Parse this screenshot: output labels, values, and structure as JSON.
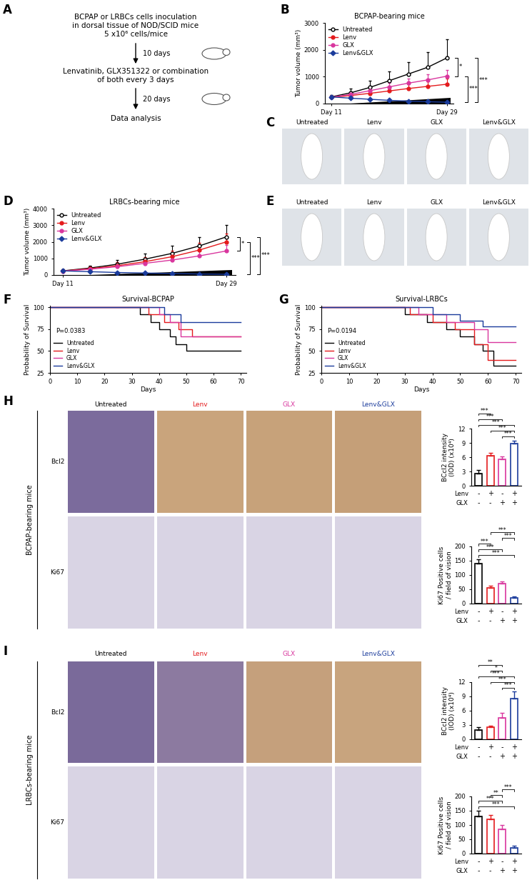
{
  "diagram": {
    "panel": "A",
    "nodes": [
      {
        "text": "BCPAP or LRBCs cells inoculation\nin dorsal tissue of NOD/SCID mice\n5 x10⁶ cells/mice"
      },
      {
        "text": "Lenvatinib, GLX351322 or combination\nof both every 3 days"
      },
      {
        "text": "Data analysis"
      }
    ],
    "edges": [
      {
        "from": 0,
        "to": 1,
        "label": "10 days"
      },
      {
        "from": 1,
        "to": 2,
        "label": "20 days"
      }
    ]
  },
  "chart_data": [
    {
      "panel": "B",
      "type": "line",
      "title": "BCPAP-bearing mice",
      "y_label": "Tumor volume (mm³)",
      "x": [
        11,
        14,
        17,
        20,
        23,
        26,
        29
      ],
      "xlim": [
        10,
        30
      ],
      "xticks": [
        {
          "value": 11,
          "label": "Day 11"
        },
        {
          "value": 29,
          "label": "Day 29"
        }
      ],
      "ylim": [
        0,
        3000
      ],
      "yticks": [
        0,
        1000,
        2000,
        3000
      ],
      "legend": "upper left",
      "series": [
        {
          "name": "Untreated",
          "color": "#000000",
          "marker": "open circle",
          "values": [
            250,
            400,
            600,
            850,
            1100,
            1350,
            1700
          ],
          "errors": [
            80,
            150,
            250,
            350,
            450,
            550,
            700
          ]
        },
        {
          "name": "Lenv",
          "color": "#e41a1c",
          "marker": "circle",
          "values": [
            230,
            300,
            380,
            470,
            560,
            640,
            720
          ],
          "errors": [
            50,
            80,
            100,
            130,
            150,
            180,
            200
          ]
        },
        {
          "name": "GLX",
          "color": "#d9369e",
          "marker": "circle",
          "values": [
            240,
            340,
            480,
            620,
            760,
            880,
            1020
          ],
          "errors": [
            60,
            90,
            120,
            150,
            180,
            200,
            230
          ]
        },
        {
          "name": "Lenv&GLX",
          "color": "#1b3c9c",
          "marker": "diamond",
          "values": [
            250,
            200,
            160,
            120,
            90,
            70,
            50
          ],
          "errors": [
            40,
            30,
            25,
            20,
            15,
            12,
            10
          ]
        }
      ],
      "significance": [
        {
          "from": "Untreated",
          "to": "GLX",
          "label": "*"
        },
        {
          "from": "GLX",
          "to": "Lenv&GLX",
          "label": "***"
        },
        {
          "from": "Untreated",
          "to": "Lenv&GLX",
          "label": "***"
        }
      ]
    },
    {
      "panel": "D",
      "type": "line",
      "title": "LRBCs-bearing mice",
      "y_label": "Tumor volume (mm³)",
      "x": [
        11,
        14,
        17,
        20,
        23,
        26,
        29
      ],
      "xlim": [
        10,
        30
      ],
      "xticks": [
        {
          "value": 11,
          "label": "Day 11"
        },
        {
          "value": 29,
          "label": "Day 29"
        }
      ],
      "ylim": [
        0,
        4000
      ],
      "yticks": [
        0,
        1000,
        2000,
        3000,
        4000
      ],
      "legend": "upper left",
      "series": [
        {
          "name": "Untreated",
          "color": "#000000",
          "marker": "open circle",
          "values": [
            250,
            420,
            650,
            950,
            1300,
            1750,
            2300
          ],
          "errors": [
            80,
            150,
            250,
            350,
            450,
            550,
            700
          ]
        },
        {
          "name": "Lenv",
          "color": "#e41a1c",
          "marker": "circle",
          "values": [
            240,
            380,
            560,
            800,
            1100,
            1500,
            2000
          ],
          "errors": [
            60,
            120,
            200,
            280,
            350,
            420,
            500
          ]
        },
        {
          "name": "GLX",
          "color": "#d9369e",
          "marker": "circle",
          "values": [
            230,
            350,
            500,
            700,
            900,
            1150,
            1450
          ],
          "errors": [
            60,
            100,
            150,
            200,
            250,
            300,
            350
          ]
        },
        {
          "name": "Lenv&GLX",
          "color": "#1b3c9c",
          "marker": "diamond",
          "values": [
            250,
            200,
            150,
            120,
            90,
            60,
            40
          ],
          "errors": [
            40,
            30,
            25,
            20,
            15,
            10,
            8
          ]
        }
      ],
      "significance": [
        {
          "from": "Untreated",
          "to": "GLX",
          "label": "*"
        },
        {
          "from": "Lenv",
          "to": "Lenv&GLX",
          "label": "***"
        },
        {
          "from": "Untreated",
          "to": "Lenv&GLX",
          "label": "***"
        }
      ]
    },
    {
      "panel": "F",
      "type": "step",
      "title": "Survival-BCPAP",
      "x_label": "Days",
      "y_label": "Probability of Survival",
      "xlim": [
        0,
        72
      ],
      "xticks": [
        0,
        10,
        20,
        30,
        40,
        50,
        60,
        70
      ],
      "ylim": [
        25,
        102
      ],
      "yticks": [
        25,
        50,
        75,
        100
      ],
      "legend": "lower left",
      "annotations": [
        "P=0.0383"
      ],
      "series": [
        {
          "name": "Untreated",
          "color": "#000000",
          "x": [
            0,
            33,
            37,
            40,
            44,
            46,
            50,
            70
          ],
          "values": [
            100,
            92,
            83,
            75,
            67,
            58,
            50,
            50
          ]
        },
        {
          "name": "Lenv",
          "color": "#e41a1c",
          "x": [
            0,
            36,
            42,
            47,
            52,
            70
          ],
          "values": [
            100,
            92,
            83,
            75,
            67,
            67
          ]
        },
        {
          "name": "GLX",
          "color": "#d9369e",
          "x": [
            0,
            40,
            44,
            48,
            70
          ],
          "values": [
            100,
            92,
            83,
            67,
            67
          ]
        },
        {
          "name": "Lenv&GLX",
          "color": "#1b3c9c",
          "x": [
            0,
            42,
            48,
            70
          ],
          "values": [
            100,
            92,
            83,
            83
          ]
        }
      ]
    },
    {
      "panel": "G",
      "type": "step",
      "title": "Survival-LRBCs",
      "x_label": "Days",
      "y_label": "Probability of Survival",
      "xlim": [
        0,
        72
      ],
      "xticks": [
        0,
        10,
        20,
        30,
        40,
        50,
        60,
        70
      ],
      "ylim": [
        25,
        102
      ],
      "yticks": [
        25,
        50,
        75,
        100
      ],
      "legend": "lower left",
      "annotations": [
        "P=0.0194"
      ],
      "series": [
        {
          "name": "Untreated",
          "color": "#000000",
          "x": [
            0,
            30,
            38,
            45,
            50,
            55,
            58,
            62,
            70
          ],
          "values": [
            100,
            92,
            83,
            75,
            67,
            58,
            50,
            33,
            33
          ]
        },
        {
          "name": "Lenv",
          "color": "#e41a1c",
          "x": [
            0,
            32,
            40,
            48,
            55,
            60,
            70
          ],
          "values": [
            100,
            92,
            83,
            75,
            58,
            40,
            40
          ]
        },
        {
          "name": "GLX",
          "color": "#d9369e",
          "x": [
            0,
            35,
            45,
            55,
            60,
            70
          ],
          "values": [
            100,
            92,
            83,
            75,
            60,
            60
          ]
        },
        {
          "name": "Lenv&GLX",
          "color": "#1b3c9c",
          "x": [
            0,
            40,
            50,
            58,
            70
          ],
          "values": [
            100,
            92,
            85,
            78,
            78
          ]
        }
      ]
    },
    {
      "type": "bar",
      "y_label": "BCcl2 intensity\n(IOD) (x10⁴)",
      "categories": [
        null,
        null,
        null,
        null
      ],
      "values": [
        2.5,
        6.3,
        5.5,
        8.8
      ],
      "errors": [
        0.8,
        0.6,
        0.6,
        0.7
      ],
      "colors": [
        "#000000",
        "#e41a1c",
        "#d9369e",
        "#1b3c9c"
      ],
      "ylim": [
        0,
        12
      ],
      "yticks": [
        0,
        3,
        6,
        9,
        12
      ],
      "factors": [
        {
          "name": "Lenv",
          "marks": [
            "-",
            "+",
            "-",
            "+"
          ]
        },
        {
          "name": "GLX",
          "marks": [
            "-",
            "-",
            "+",
            "+"
          ]
        }
      ],
      "significance": [
        {
          "from": 2,
          "to": 3,
          "label": "***"
        },
        {
          "from": 1,
          "to": 3,
          "label": "***"
        },
        {
          "from": 0,
          "to": 3,
          "label": "***"
        },
        {
          "from": 0,
          "to": 2,
          "label": "***"
        },
        {
          "from": 0,
          "to": 1,
          "label": "***"
        }
      ]
    },
    {
      "type": "bar",
      "y_label": "Ki67 Positive cells\n/ field of vision",
      "categories": [
        null,
        null,
        null,
        null
      ],
      "values": [
        140,
        55,
        70,
        20
      ],
      "errors": [
        15,
        8,
        8,
        6
      ],
      "colors": [
        "#000000",
        "#e41a1c",
        "#d9369e",
        "#1b3c9c"
      ],
      "ylim": [
        0,
        200
      ],
      "yticks": [
        0,
        50,
        100,
        150,
        200
      ],
      "factors": [
        {
          "name": "Lenv",
          "marks": [
            "-",
            "+",
            "-",
            "+"
          ]
        },
        {
          "name": "GLX",
          "marks": [
            "-",
            "-",
            "+",
            "+"
          ]
        }
      ],
      "significance": [
        {
          "from": 0,
          "to": 3,
          "label": "***"
        },
        {
          "from": 0,
          "to": 2,
          "label": "***"
        },
        {
          "from": 0,
          "to": 1,
          "label": "***"
        },
        {
          "from": 2,
          "to": 3,
          "label": "***"
        },
        {
          "from": 1,
          "to": 3,
          "label": "***"
        }
      ]
    },
    {
      "type": "bar",
      "y_label": "BCcl2 intensity\n(IOD) (x10⁴)",
      "categories": [
        null,
        null,
        null,
        null
      ],
      "values": [
        2.0,
        2.5,
        4.5,
        8.5
      ],
      "errors": [
        0.5,
        0.4,
        1.0,
        1.5
      ],
      "colors": [
        "#000000",
        "#e41a1c",
        "#d9369e",
        "#1b3c9c"
      ],
      "ylim": [
        0,
        12
      ],
      "yticks": [
        0,
        3,
        6,
        9,
        12
      ],
      "factors": [
        {
          "name": "Lenv",
          "marks": [
            "-",
            "+",
            "-",
            "+"
          ]
        },
        {
          "name": "GLX",
          "marks": [
            "-",
            "-",
            "+",
            "+"
          ]
        }
      ],
      "significance": [
        {
          "from": 2,
          "to": 3,
          "label": "***"
        },
        {
          "from": 1,
          "to": 3,
          "label": "***"
        },
        {
          "from": 0,
          "to": 3,
          "label": "***"
        },
        {
          "from": 1,
          "to": 2,
          "label": "*"
        },
        {
          "from": 0,
          "to": 2,
          "label": "**"
        }
      ]
    },
    {
      "type": "bar",
      "y_label": "Ki67 Positive cells\n/ field of vision",
      "categories": [
        null,
        null,
        null,
        null
      ],
      "values": [
        130,
        120,
        85,
        20
      ],
      "errors": [
        20,
        15,
        15,
        8
      ],
      "colors": [
        "#000000",
        "#e41a1c",
        "#d9369e",
        "#1b3c9c"
      ],
      "ylim": [
        0,
        200
      ],
      "yticks": [
        0,
        50,
        100,
        150,
        200
      ],
      "factors": [
        {
          "name": "Lenv",
          "marks": [
            "-",
            "+",
            "-",
            "+"
          ]
        },
        {
          "name": "GLX",
          "marks": [
            "-",
            "-",
            "+",
            "+"
          ]
        }
      ],
      "significance": [
        {
          "from": 0,
          "to": 3,
          "label": "***"
        },
        {
          "from": 0,
          "to": 2,
          "label": "***"
        },
        {
          "from": 1,
          "to": 2,
          "label": "**"
        },
        {
          "from": 2,
          "to": 3,
          "label": "***"
        }
      ]
    }
  ],
  "images": [
    {
      "panel": "C",
      "columns": [
        {
          "label": "Untreated",
          "color": "#000000"
        },
        {
          "label": "Lenv",
          "color": "#000000"
        },
        {
          "label": "GLX",
          "color": "#000000"
        },
        {
          "label": "Lenv&GLX",
          "color": "#000000"
        }
      ]
    },
    {
      "panel": "E",
      "columns": [
        {
          "label": "Untreated",
          "color": "#000000"
        },
        {
          "label": "Lenv",
          "color": "#000000"
        },
        {
          "label": "GLX",
          "color": "#000000"
        },
        {
          "label": "Lenv&GLX",
          "color": "#000000"
        }
      ]
    },
    {
      "panel": "H",
      "side_label": "BCPAP-bearing mice",
      "rows": [
        "Bcl2",
        "Ki67"
      ],
      "columns": [
        {
          "label": "Untreated",
          "color": "#000000"
        },
        {
          "label": "Lenv",
          "color": "#e41a1c"
        },
        {
          "label": "GLX",
          "color": "#d9369e"
        },
        {
          "label": "Lenv&GLX",
          "color": "#1b3c9c"
        }
      ]
    },
    {
      "panel": "I",
      "side_label": "LRBCs-bearing mice",
      "rows": [
        "Bcl2",
        "Ki67"
      ],
      "columns": [
        {
          "label": "Untreated",
          "color": "#000000"
        },
        {
          "label": "Lenv",
          "color": "#e41a1c"
        },
        {
          "label": "GLX",
          "color": "#d9369e"
        },
        {
          "label": "Lenv&GLX",
          "color": "#1b3c9c"
        }
      ]
    }
  ]
}
